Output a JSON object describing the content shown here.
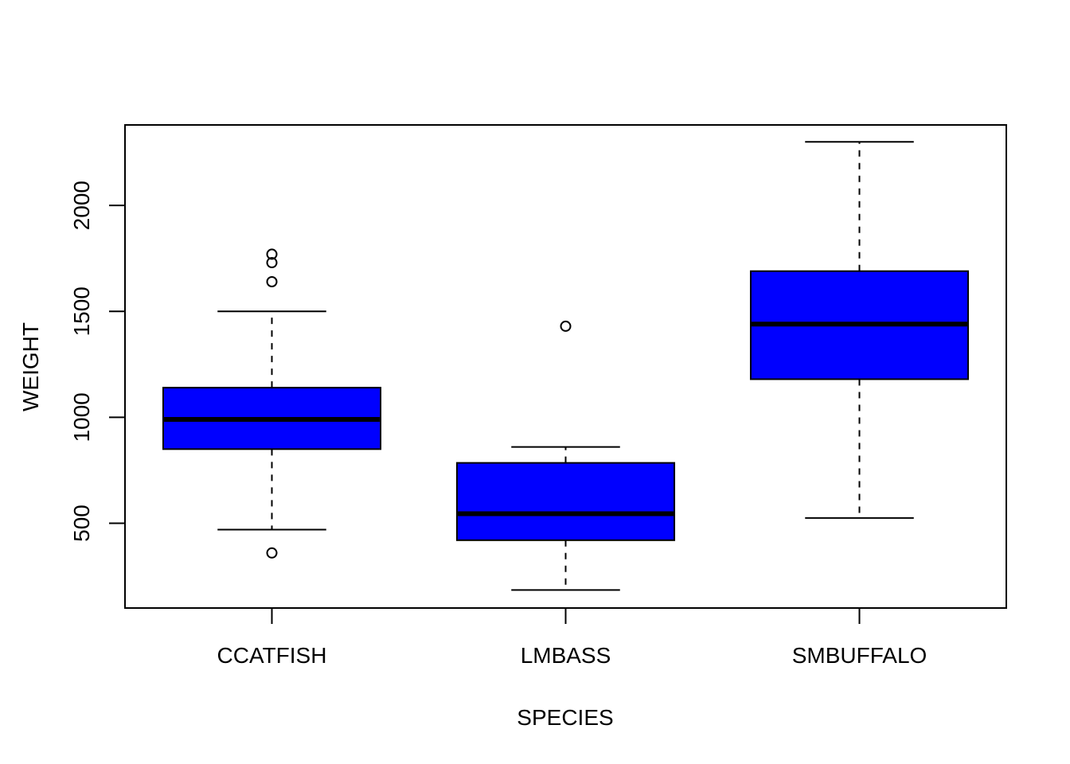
{
  "chart_data": {
    "type": "boxplot",
    "title": "",
    "xlabel": "SPECIES",
    "ylabel": "WEIGHT",
    "ylim": [
      100,
      2380
    ],
    "yticks": [
      500,
      1000,
      1500,
      2000
    ],
    "ytick_labels": [
      "500",
      "1000",
      "1500",
      "2000"
    ],
    "grid": false,
    "box_color": "#0000ff",
    "categories": [
      "CCATFISH",
      "LMBASS",
      "SMBUFFALO"
    ],
    "boxes": [
      {
        "category": "CCATFISH",
        "whisker_low": 470,
        "q1": 850,
        "median": 990,
        "q3": 1140,
        "whisker_high": 1500,
        "outliers": [
          360,
          1640,
          1730,
          1770
        ]
      },
      {
        "category": "LMBASS",
        "whisker_low": 185,
        "q1": 420,
        "median": 545,
        "q3": 785,
        "whisker_high": 860,
        "outliers": [
          1430
        ]
      },
      {
        "category": "SMBUFFALO",
        "whisker_low": 525,
        "q1": 1180,
        "median": 1440,
        "q3": 1690,
        "whisker_high": 2300,
        "outliers": []
      }
    ]
  }
}
